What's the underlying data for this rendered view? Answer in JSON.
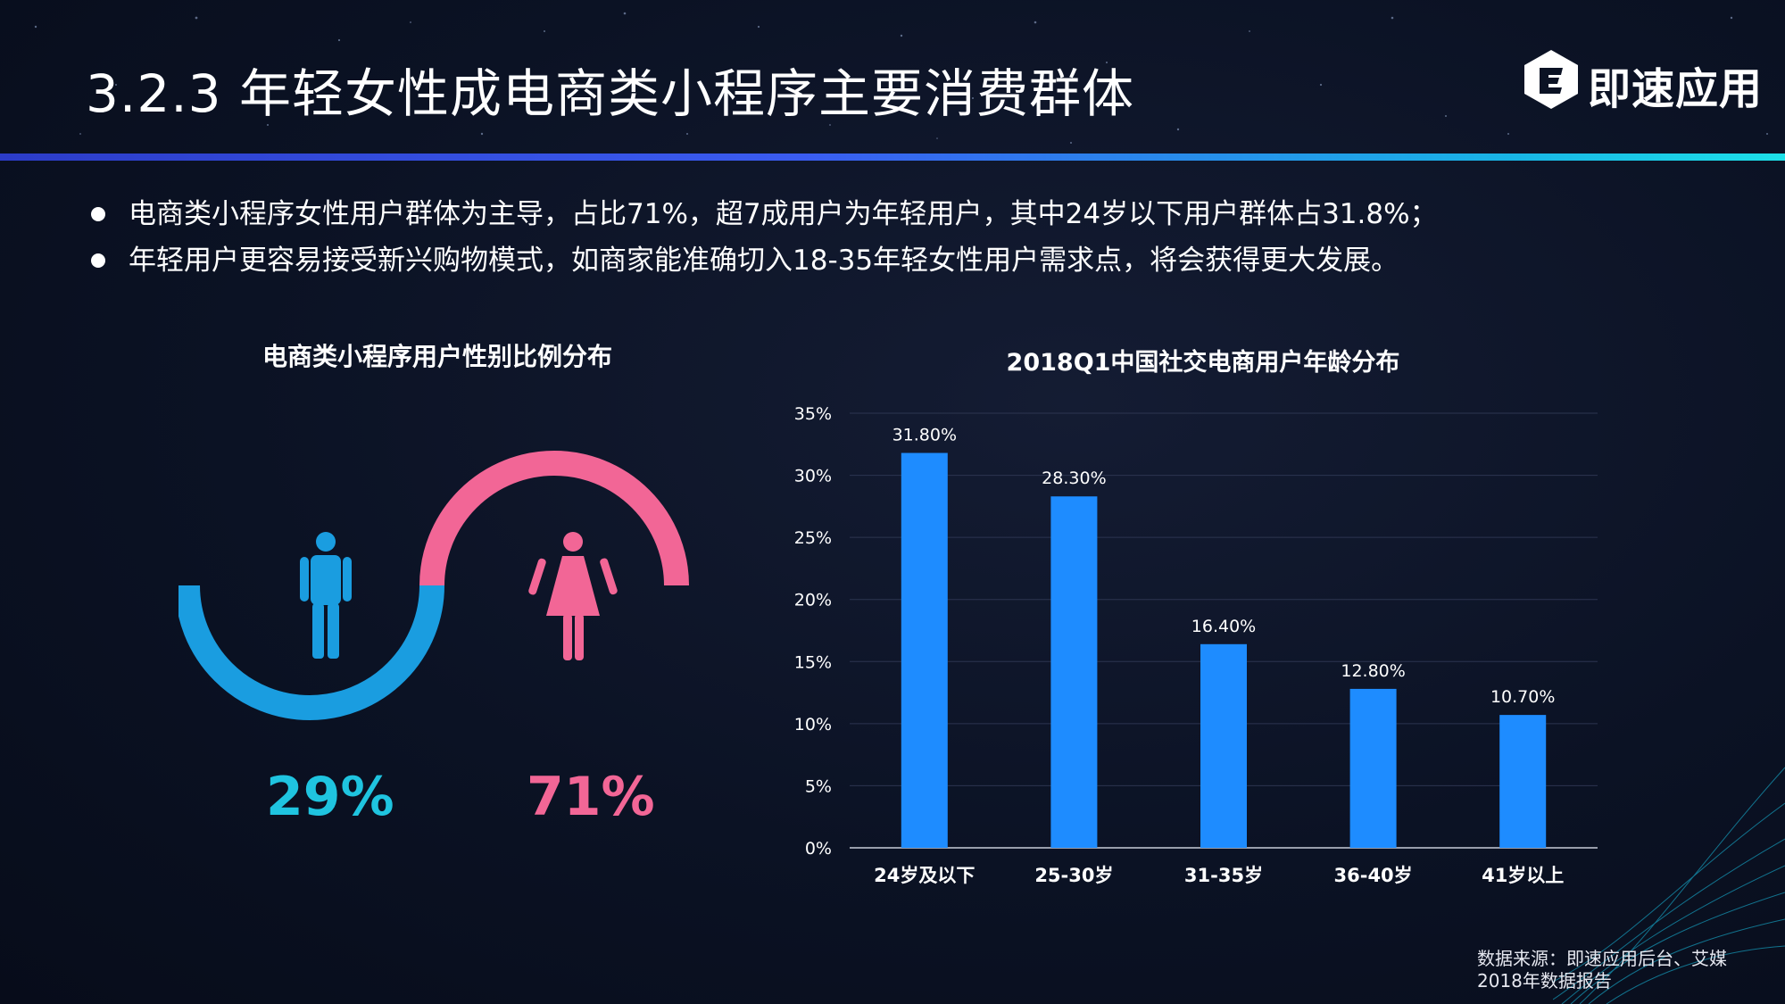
{
  "header": {
    "title": "3.2.3 年轻女性成电商类小程序主要消费群体",
    "logo_text": "即速应用"
  },
  "bullets": [
    "电商类小程序女性用户群体为主导，占比71%，超7成用户为年轻用户，其中24岁以下用户群体占31.8%；",
    "年轻用户更容易接受新兴购物模式，如商家能准确切入18-35年轻女性用户需求点，将会获得更大发展。"
  ],
  "gender": {
    "title": "电商类小程序用户性别比例分布",
    "male_pct": "29%",
    "female_pct": "71%",
    "colors": {
      "male": "#1a9de0",
      "female": "#f26696"
    }
  },
  "chart_data": {
    "type": "bar",
    "title": "2018Q1中国社交电商用户年龄分布",
    "categories": [
      "24岁及以下",
      "25-30岁",
      "31-35岁",
      "36-40岁",
      "41岁以上"
    ],
    "values": [
      31.8,
      28.3,
      16.4,
      12.8,
      10.7
    ],
    "value_labels": [
      "31.80%",
      "28.30%",
      "16.40%",
      "12.80%",
      "10.70%"
    ],
    "y_ticks": [
      "0%",
      "5%",
      "10%",
      "15%",
      "20%",
      "25%",
      "30%",
      "35%"
    ],
    "ylim": [
      0,
      35
    ],
    "grid": true,
    "xlabel": "",
    "ylabel": "",
    "bar_color": "#1e8cff"
  },
  "source": {
    "line1": "数据来源：即速应用后台、艾媒",
    "line2": "2018年数据报告"
  }
}
